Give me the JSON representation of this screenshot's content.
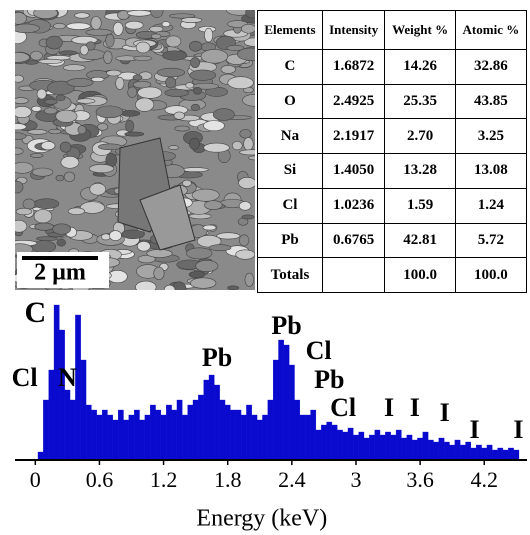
{
  "image": {
    "scale_bar": "2 µm"
  },
  "table": {
    "header": [
      "Elements",
      "Intensity",
      "Weight %",
      "Atomic %"
    ],
    "rows": [
      [
        "C",
        "1.6872",
        "14.26",
        "32.86"
      ],
      [
        "O",
        "2.4925",
        "25.35",
        "43.85"
      ],
      [
        "Na",
        "2.1917",
        "2.70",
        "3.25"
      ],
      [
        "Si",
        "1.4050",
        "13.28",
        "13.08"
      ],
      [
        "Cl",
        "1.0236",
        "1.59",
        "1.24"
      ],
      [
        "Pb",
        "0.6765",
        "42.81",
        "5.72"
      ],
      [
        "Totals",
        null,
        "100.0",
        "100.0"
      ]
    ]
  },
  "chart_data": {
    "type": "bar",
    "x_label": "Energy (keV)",
    "color": "#0a0acf",
    "bin_width": 0.05,
    "x": [
      0.05,
      0.1,
      0.15,
      0.2,
      0.25,
      0.3,
      0.35,
      0.4,
      0.45,
      0.5,
      0.55,
      0.6,
      0.65,
      0.7,
      0.75,
      0.8,
      0.85,
      0.9,
      0.95,
      1.0,
      1.05,
      1.1,
      1.15,
      1.2,
      1.25,
      1.3,
      1.35,
      1.4,
      1.45,
      1.5,
      1.55,
      1.6,
      1.65,
      1.7,
      1.75,
      1.8,
      1.85,
      1.9,
      1.95,
      2.0,
      2.05,
      2.1,
      2.15,
      2.2,
      2.25,
      2.3,
      2.35,
      2.4,
      2.45,
      2.5,
      2.55,
      2.6,
      2.65,
      2.7,
      2.75,
      2.8,
      2.85,
      2.9,
      2.95,
      3.0,
      3.05,
      3.1,
      3.15,
      3.2,
      3.25,
      3.3,
      3.35,
      3.4,
      3.45,
      3.5,
      3.55,
      3.6,
      3.65,
      3.7,
      3.75,
      3.8,
      3.85,
      3.9,
      3.95,
      4.0,
      4.05,
      4.1,
      4.15,
      4.2,
      4.25,
      4.3,
      4.35,
      4.4,
      4.45,
      4.5
    ],
    "values": [
      8,
      60,
      90,
      155,
      130,
      70,
      60,
      145,
      100,
      55,
      50,
      45,
      50,
      45,
      40,
      50,
      40,
      45,
      50,
      40,
      45,
      55,
      50,
      45,
      55,
      50,
      60,
      45,
      55,
      60,
      65,
      80,
      85,
      75,
      60,
      55,
      50,
      50,
      45,
      55,
      45,
      40,
      45,
      60,
      100,
      120,
      115,
      95,
      60,
      45,
      45,
      50,
      30,
      35,
      38,
      35,
      30,
      28,
      32,
      25,
      28,
      22,
      25,
      30,
      25,
      28,
      25,
      30,
      22,
      25,
      20,
      22,
      28,
      20,
      18,
      22,
      18,
      15,
      20,
      15,
      18,
      12,
      15,
      12,
      15,
      10,
      12,
      10,
      12,
      10
    ],
    "xlim": [
      -0.19,
      4.6
    ],
    "ylim": [
      0,
      160
    ],
    "xticks": [
      0,
      0.6,
      1.2,
      1.8,
      2.4,
      3,
      3.6,
      4.2
    ],
    "annotations": [
      {
        "text": "C",
        "x": 0.0,
        "y": 145
      },
      {
        "text": "Cl",
        "x": -0.1,
        "y": 80
      },
      {
        "text": "N",
        "x": 0.3,
        "y": 80
      },
      {
        "text": "Pb",
        "x": 1.7,
        "y": 100
      },
      {
        "text": "Pb",
        "x": 2.35,
        "y": 132
      },
      {
        "text": "Cl",
        "x": 2.65,
        "y": 107
      },
      {
        "text": "Pb",
        "x": 2.75,
        "y": 78
      },
      {
        "text": "Cl",
        "x": 2.88,
        "y": 50
      },
      {
        "text": "I",
        "x": 3.31,
        "y": 50
      },
      {
        "text": "I",
        "x": 3.55,
        "y": 50
      },
      {
        "text": "I",
        "x": 3.83,
        "y": 45
      },
      {
        "text": "I",
        "x": 4.11,
        "y": 28
      },
      {
        "text": "I",
        "x": 4.52,
        "y": 28
      }
    ]
  }
}
